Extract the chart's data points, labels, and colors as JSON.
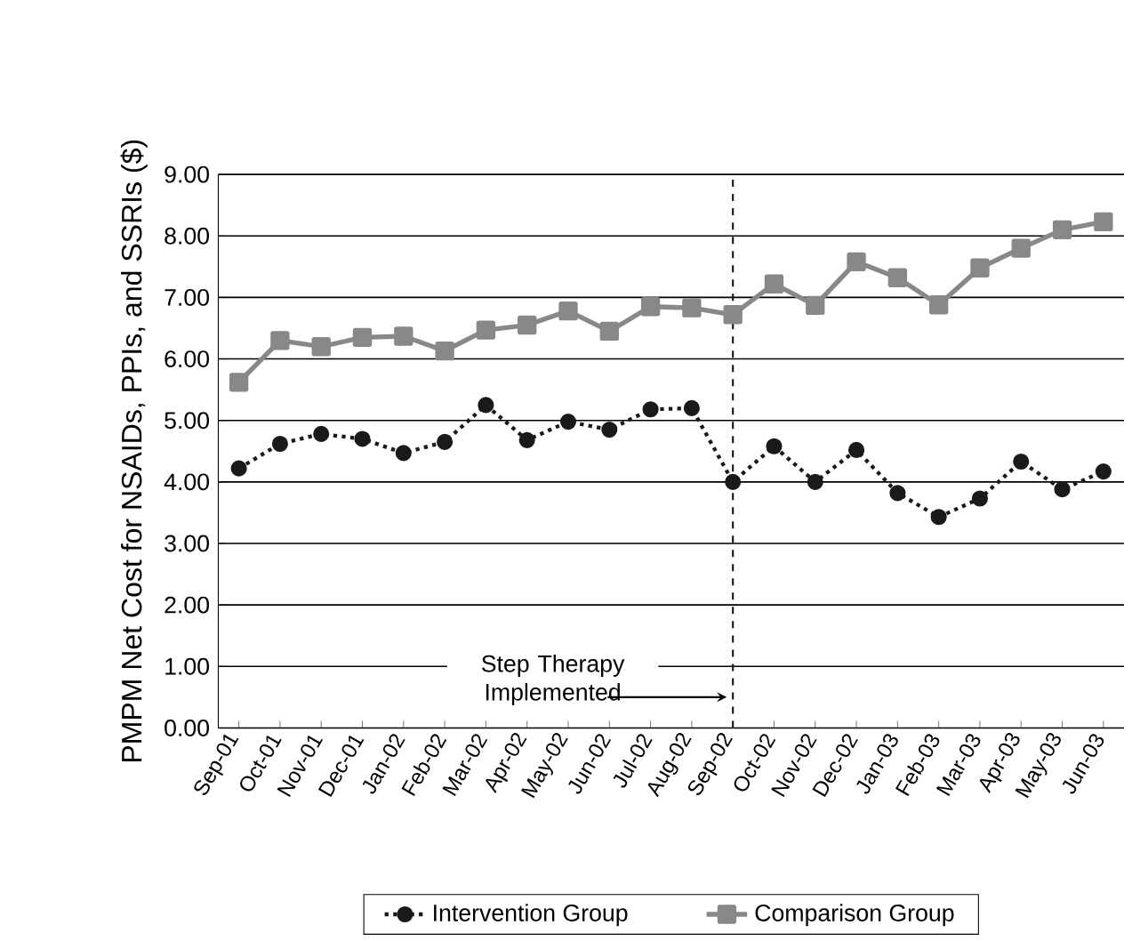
{
  "chart_data": {
    "type": "line",
    "ylabel": "PMPM Net Cost for NSAIDs, PPIs, and SSRIs ($)",
    "categories": [
      "Sep-01",
      "Oct-01",
      "Nov-01",
      "Dec-01",
      "Jan-02",
      "Feb-02",
      "Mar-02",
      "Apr-02",
      "May-02",
      "Jun-02",
      "Jul-02",
      "Aug-02",
      "Sep-02",
      "Oct-02",
      "Nov-02",
      "Dec-02",
      "Jan-03",
      "Feb-03",
      "Mar-03",
      "Apr-03",
      "May-03",
      "Jun-03"
    ],
    "series": [
      {
        "name": "Intervention Group",
        "color": "#1a1a1a",
        "marker": "circle",
        "line_style": "dotted",
        "values": [
          4.22,
          4.62,
          4.78,
          4.7,
          4.47,
          4.65,
          5.25,
          4.68,
          4.98,
          4.85,
          5.18,
          5.2,
          4.0,
          4.58,
          4.0,
          4.52,
          3.82,
          3.43,
          3.73,
          4.33,
          3.88,
          4.17
        ]
      },
      {
        "name": "Comparison Group",
        "color": "#888888",
        "marker": "square",
        "line_style": "solid",
        "values": [
          5.62,
          6.3,
          6.2,
          6.35,
          6.37,
          6.13,
          6.47,
          6.55,
          6.78,
          6.45,
          6.85,
          6.83,
          6.72,
          7.22,
          6.87,
          7.58,
          7.32,
          6.88,
          7.48,
          7.8,
          8.1,
          8.23
        ]
      }
    ],
    "ylim": [
      0,
      9
    ],
    "yticks": [
      {
        "value": 0,
        "label": "0.00"
      },
      {
        "value": 1,
        "label": "1.00"
      },
      {
        "value": 2,
        "label": "2.00"
      },
      {
        "value": 3,
        "label": "3.00"
      },
      {
        "value": 4,
        "label": "4.00"
      },
      {
        "value": 5,
        "label": "5.00"
      },
      {
        "value": 6,
        "label": "6.00"
      },
      {
        "value": 7,
        "label": "7.00"
      },
      {
        "value": 8,
        "label": "8.00"
      },
      {
        "value": 9,
        "label": "9.00"
      }
    ],
    "ref_lines": [
      {
        "axis": "x",
        "value": "Sep-02",
        "label": "Step Therapy Implemented",
        "line_style": "dashed",
        "color": "#1a1a1a"
      }
    ],
    "grid": "y",
    "legend": "bottom"
  }
}
